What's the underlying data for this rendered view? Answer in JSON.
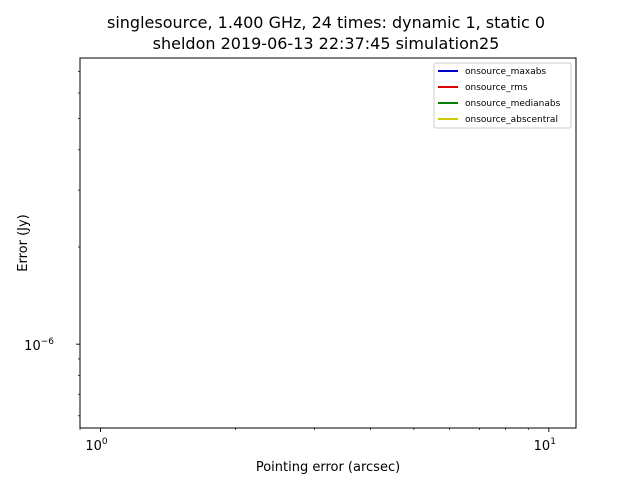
{
  "chart_data": {
    "type": "line",
    "title_line1": "singlesource, 1.400 GHz, 24 times: dynamic 1, static 0",
    "title_line2": "sheldon 2019-06-13 22:37:45 simulation25",
    "xlabel": "Pointing error (arcsec)",
    "ylabel": "Error (Jy)",
    "xscale": "log",
    "yscale": "log",
    "xlim": [
      0.9,
      11.5
    ],
    "ylim": [
      5.5e-07,
      7.7e-06
    ],
    "x_ticks": [
      {
        "value": 1,
        "base": "10",
        "exp": "0"
      },
      {
        "value": 10,
        "base": "10",
        "exp": "1"
      }
    ],
    "y_ticks": [
      {
        "value": 1e-06,
        "base": "10",
        "exp": "−6"
      }
    ],
    "grid": false,
    "legend_position": "top-right",
    "series": [
      {
        "name": "onsource_maxabs",
        "color": "#0000cc",
        "values": []
      },
      {
        "name": "onsource_rms",
        "color": "#dd0000",
        "values": []
      },
      {
        "name": "onsource_medianabs",
        "color": "#007f00",
        "values": []
      },
      {
        "name": "onsource_abscentral",
        "color": "#cccc00",
        "values": []
      }
    ]
  }
}
